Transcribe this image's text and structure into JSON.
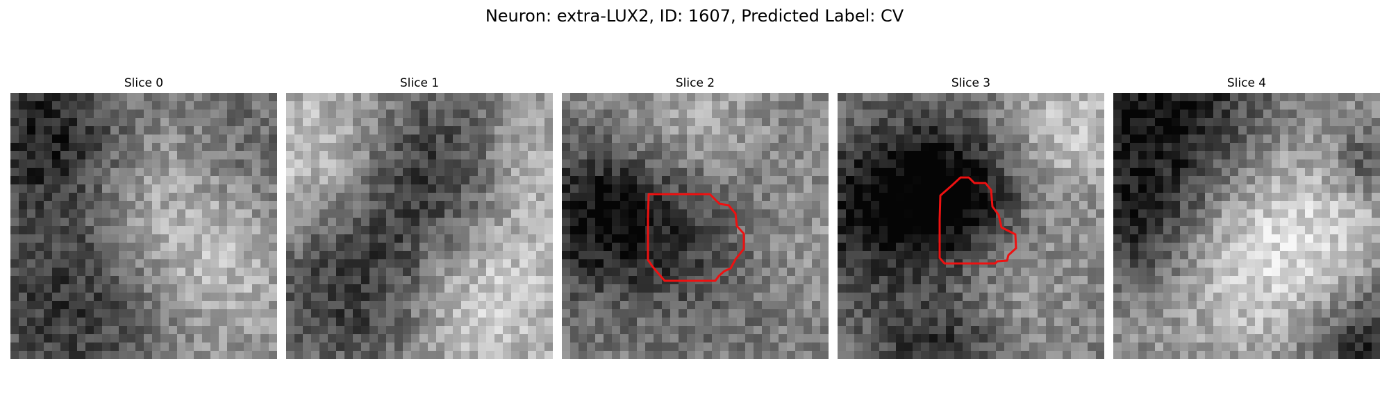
{
  "figure": {
    "title": "Neuron: extra-LUX2, ID: 1607, Predicted Label: CV"
  },
  "slices": [
    {
      "title": "Slice 0",
      "has_contour": false
    },
    {
      "title": "Slice 1",
      "has_contour": false
    },
    {
      "title": "Slice 2",
      "has_contour": true
    },
    {
      "title": "Slice 3",
      "has_contour": true
    },
    {
      "title": "Slice 4",
      "has_contour": false
    }
  ],
  "colors": {
    "contour": "#ee1111",
    "background": "#ffffff",
    "colormap": "gray"
  }
}
